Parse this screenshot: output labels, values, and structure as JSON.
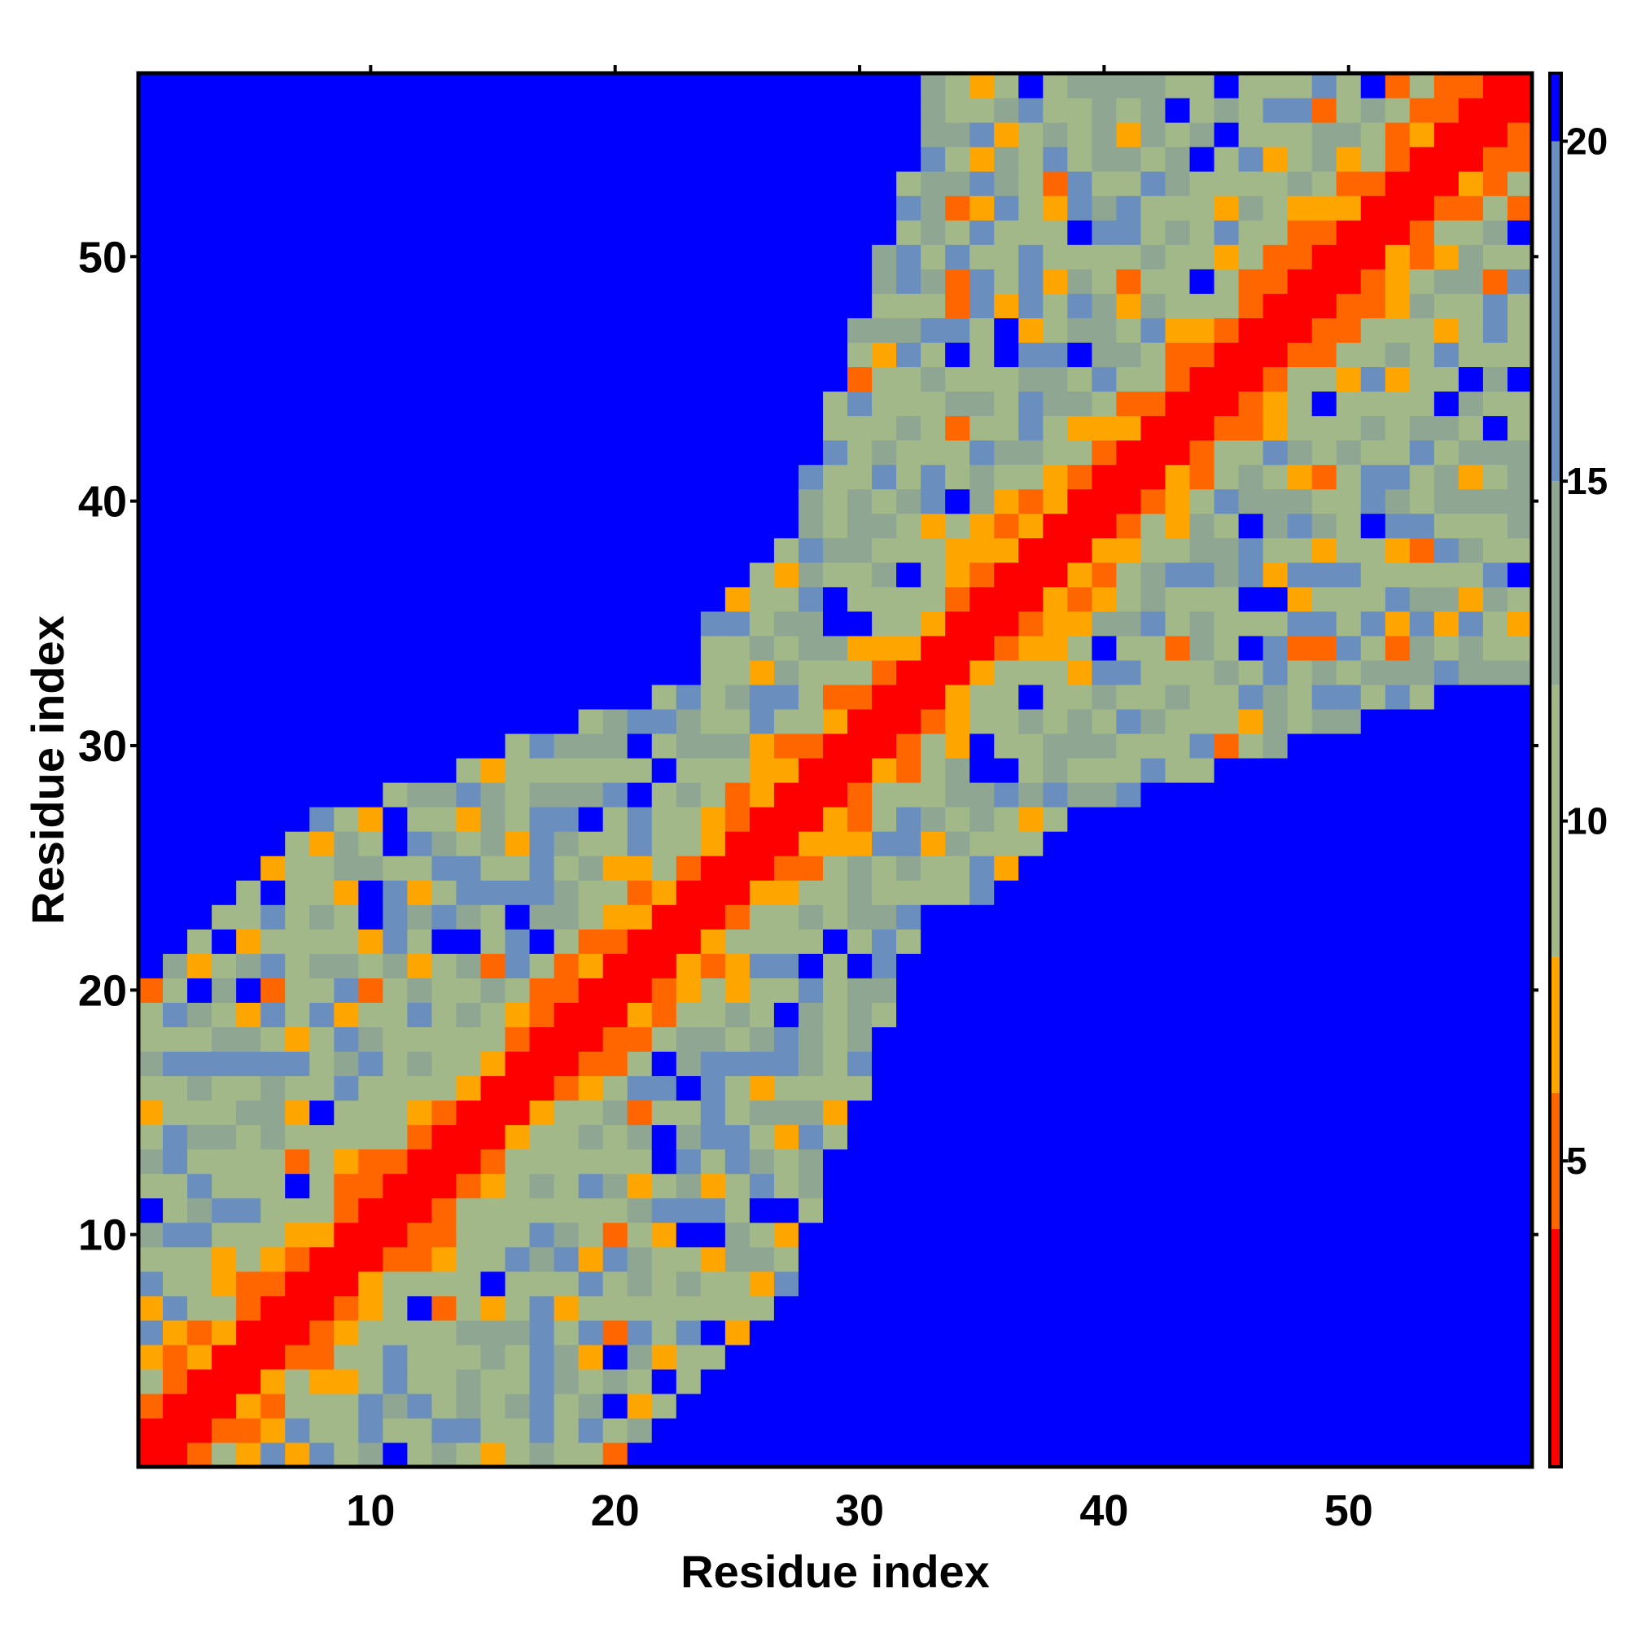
{
  "chart_data": {
    "type": "heatmap",
    "title": "",
    "xlabel": "Residue index",
    "ylabel": "Residue index",
    "n": 57,
    "xlim": [
      0.5,
      57.5
    ],
    "ylim": [
      0.5,
      57.5
    ],
    "x_ticks": [
      10,
      20,
      30,
      40,
      50
    ],
    "y_ticks": [
      10,
      20,
      30,
      40,
      50
    ],
    "x_tick_labels": [
      "10",
      "20",
      "30",
      "40",
      "50"
    ],
    "y_tick_labels": [
      "10",
      "20",
      "30",
      "40",
      "50"
    ],
    "colorbar": {
      "ticks": [
        5,
        10,
        15,
        20
      ],
      "tick_labels": [
        "5",
        "10",
        "15",
        "20"
      ],
      "range": [
        0.5,
        21
      ],
      "bands": [
        {
          "from": 0.5,
          "to": 4,
          "color": "#ff0000"
        },
        {
          "from": 4,
          "to": 6,
          "color": "#ff6600"
        },
        {
          "from": 6,
          "to": 8,
          "color": "#ffa500"
        },
        {
          "from": 8,
          "to": 12,
          "color": "#a3b888"
        },
        {
          "from": 12,
          "to": 15,
          "color": "#8ea692"
        },
        {
          "from": 15,
          "to": 20,
          "color": "#6a8fbe"
        },
        {
          "from": 20,
          "to": 21,
          "color": "#0000ff"
        }
      ]
    },
    "value_rule": "Symmetric residue-residue distance map. Cells with |i-j| <= 1 fall in the 0.5-4 band; cells beyond the contact envelope saturate at 21 (blue); intermediate cells increase with |i-j|.",
    "envelope": [
      {
        "i": 1,
        "lo": 1,
        "hi": 24
      },
      {
        "i": 10,
        "lo": 1,
        "hi": 30
      },
      {
        "i": 20,
        "lo": 1,
        "hi": 32
      },
      {
        "i": 27,
        "lo": 8,
        "hi": 38
      },
      {
        "i": 33,
        "lo": 24,
        "hi": 57
      },
      {
        "i": 40,
        "lo": 24,
        "hi": 57
      },
      {
        "i": 50,
        "lo": 28,
        "hi": 57
      },
      {
        "i": 57,
        "lo": 32,
        "hi": 57
      }
    ],
    "colors": {
      "background": "#0000ff",
      "diagonal": "#ff0000",
      "near": "#ff6600",
      "close": "#ffa500",
      "mid": "#a3b888",
      "far": "#6a8fbe"
    }
  }
}
